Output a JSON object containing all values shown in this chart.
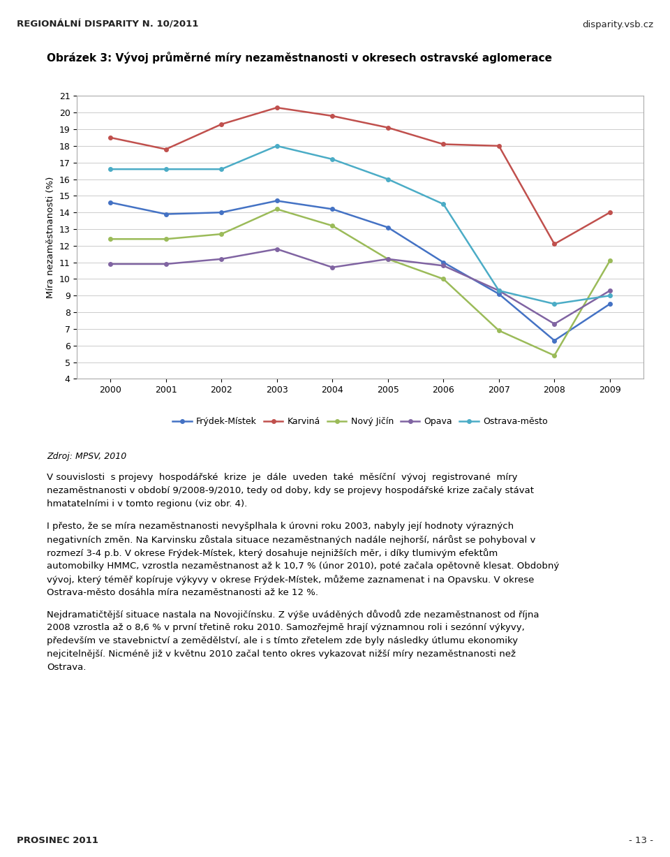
{
  "title": "Obrázek 3: Vývoj průměrné míry nezaměstnanosti v okresech ostravské aglomerace",
  "header_left": "REGIONÁLNÍ DISPARITY N. 10/2011",
  "header_right": "disparity.vsb.cz",
  "footer_left": "PROSINEC 2011",
  "footer_right": "- 13 -",
  "source": "Zdroj: MPSV, 2010",
  "years": [
    2000,
    2001,
    2002,
    2003,
    2004,
    2005,
    2006,
    2007,
    2008,
    2009
  ],
  "series": [
    {
      "name": "Frýdek-Místek",
      "values": [
        14.6,
        13.9,
        14.0,
        14.7,
        14.2,
        13.1,
        11.0,
        9.1,
        6.3,
        8.5
      ],
      "color": "#4472C4"
    },
    {
      "name": "Karviná",
      "values": [
        18.5,
        17.8,
        19.3,
        20.3,
        19.8,
        19.1,
        18.1,
        18.0,
        12.1,
        14.0
      ],
      "color": "#C0504D"
    },
    {
      "name": "Nový Jičín",
      "values": [
        12.4,
        12.4,
        12.7,
        14.2,
        13.2,
        11.2,
        10.0,
        6.9,
        5.4,
        11.1
      ],
      "color": "#9BBB59"
    },
    {
      "name": "Opava",
      "values": [
        10.9,
        10.9,
        11.2,
        11.8,
        10.7,
        11.2,
        10.8,
        9.3,
        7.3,
        9.3
      ],
      "color": "#8064A2"
    },
    {
      "name": "Ostrava-město",
      "values": [
        16.6,
        16.6,
        16.6,
        18.0,
        17.2,
        16.0,
        14.5,
        9.3,
        8.5,
        9.0
      ],
      "color": "#4BACC6"
    }
  ],
  "ylabel": "Míra nezaměstnanosti (%)",
  "ylim": [
    4,
    21
  ],
  "yticks": [
    4,
    5,
    6,
    7,
    8,
    9,
    10,
    11,
    12,
    13,
    14,
    15,
    16,
    17,
    18,
    19,
    20,
    21
  ],
  "header_color": "#F2DCDB",
  "footer_color": "#F2DCDB",
  "grid_color": "#CCCCCC",
  "body_paragraphs": [
    "V souvislosti  s projevy  hospodářské  krize  je  dále  uveden  také  měsíční  vývoj  registrované  míry nezaměstnanosti v období 9/2008-9/2010, tedy od doby, kdy se projevy hospodářské krize začaly stávat hmatatelními i v tomto regionu (viz obr. 4).",
    "I přesto, že se míra nezaměstnanosti nevyšplhala k úrovni roku 2003, nabyly její hodnoty výrazných negativních změn. Na Karvinsku zůstala situace nezaměstnaných nadále nejhorší, nárůst se pohyboval v rozmezí 3-4 p.b. V okrese Frýdek-Místek, který dosahuje nejnižších měr, i díky tlumivým efektům automobilky HMMC, vzrostla nezaměstnanost až k 10,7 % (únor 2010), poté začala opětovně klesat. Obdobný vývoj, který téměř kopíruje výkyvy v okrese Frýdek-Místek, můžeme zaznamenat i na Opavsku. V okrese Ostrava-město dosáhla míra nezaměstnanosti až ke 12 %.",
    "Nejdramatičtější situace nastala na Novojičínsku. Z výše uváděných důvodů zde nezaměstnanost od října 2008 vzrostla až o 8,6 % v první třetině roku 2010. Samozřejmě hrají významnou roli i sezónní výkyvy, především ve stavebnictví a zemědělství, ale i s tímto zřetelem zde byly následky útlumu ekonomiky nejcitelnější. Nicméně již v květnu 2010 začal tento okres vykazovat nižší míry nezaměstnanosti než Ostrava."
  ]
}
